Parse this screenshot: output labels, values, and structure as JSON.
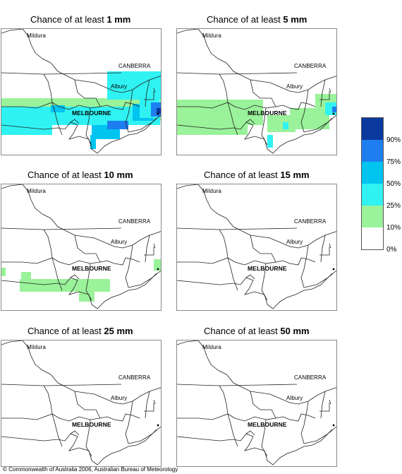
{
  "panels": [
    {
      "prefix": "Chance of at least ",
      "amount": "1 mm"
    },
    {
      "prefix": "Chance of at least ",
      "amount": "5 mm"
    },
    {
      "prefix": "Chance of at least ",
      "amount": "10 mm"
    },
    {
      "prefix": "Chance of at least ",
      "amount": "15 mm"
    },
    {
      "prefix": "Chance of at least ",
      "amount": "25 mm"
    },
    {
      "prefix": "Chance of at least ",
      "amount": "50 mm"
    }
  ],
  "places": {
    "mildura": "Mildura",
    "canberra": "CANBERRA",
    "albury": "Albury",
    "melbourne": "MELBOURNE"
  },
  "legend": {
    "labels": [
      "90%",
      "75%",
      "50%",
      "25%",
      "10%",
      "0%"
    ],
    "colors": [
      "#0a3a9e",
      "#1e7ef0",
      "#00c4f0",
      "#30f2f2",
      "#9af29a",
      "#ffffff"
    ]
  },
  "copyright": "© Commonwealth of Australia 2006, Australian Bureau of Meteorology"
}
